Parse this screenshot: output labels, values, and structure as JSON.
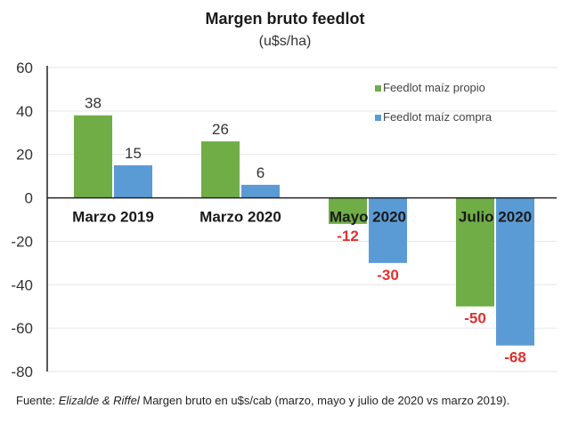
{
  "chart_data": {
    "type": "bar",
    "title": "Margen bruto feedlot",
    "subtitle": "(u$s/ha)",
    "xlabel": "",
    "ylabel": "",
    "ylim": [
      -80,
      60
    ],
    "yticks": [
      60,
      40,
      20,
      0,
      -20,
      -40,
      -60,
      -80
    ],
    "grid": true,
    "legend_position": "top-right",
    "categories": [
      "Marzo 2019",
      "Marzo 2020",
      "Mayo 2020",
      "Julio 2020"
    ],
    "series": [
      {
        "name": "Feedlot maíz propio",
        "color": "#70ad47",
        "values": [
          38,
          26,
          -12,
          -50
        ]
      },
      {
        "name": "Feedlot maíz compra",
        "color": "#5b9bd5",
        "values": [
          15,
          6,
          -30,
          -68
        ]
      }
    ],
    "label_colors": {
      "positive": "#333333",
      "negative": "#e03030"
    }
  },
  "footnote": {
    "prefix": "Fuente: ",
    "authors": "Elizalde & Riffel",
    "text": " Margen bruto en u$s/cab (marzo, mayo y julio de 2020 vs marzo 2019)."
  }
}
